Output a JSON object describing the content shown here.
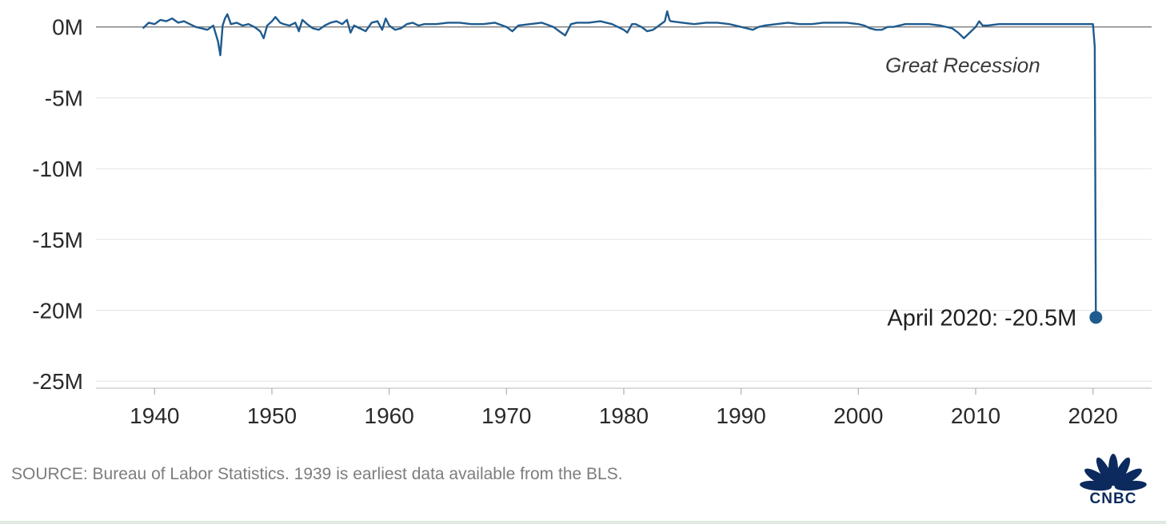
{
  "chart_data": {
    "type": "line",
    "title": "",
    "xlabel": "",
    "ylabel": "",
    "xlim": [
      1935,
      2025
    ],
    "ylim": [
      -25.5,
      1.0
    ],
    "x_ticks": [
      1940,
      1950,
      1960,
      1970,
      1980,
      1990,
      2000,
      2010,
      2020
    ],
    "x_tick_labels": [
      "1940",
      "1950",
      "1960",
      "1970",
      "1980",
      "1990",
      "2000",
      "2010",
      "2020"
    ],
    "y_ticks": [
      0,
      -5,
      -10,
      -15,
      -20,
      -25
    ],
    "y_tick_labels": [
      "0M",
      "-5M",
      "-10M",
      "-15M",
      "-20M",
      "-25M"
    ],
    "grid": "horizontal",
    "series": [
      {
        "color": "#1f5b8e",
        "points": [
          [
            1939.0,
            -0.1
          ],
          [
            1939.5,
            0.3
          ],
          [
            1940.0,
            0.2
          ],
          [
            1940.5,
            0.5
          ],
          [
            1941.0,
            0.4
          ],
          [
            1941.5,
            0.6
          ],
          [
            1942.0,
            0.3
          ],
          [
            1942.5,
            0.4
          ],
          [
            1943.0,
            0.2
          ],
          [
            1943.5,
            0.0
          ],
          [
            1944.0,
            -0.1
          ],
          [
            1944.5,
            -0.2
          ],
          [
            1945.0,
            0.1
          ],
          [
            1945.4,
            -1.0
          ],
          [
            1945.6,
            -2.0
          ],
          [
            1945.8,
            0.1
          ],
          [
            1946.0,
            0.6
          ],
          [
            1946.2,
            0.9
          ],
          [
            1946.5,
            0.2
          ],
          [
            1947.0,
            0.3
          ],
          [
            1947.5,
            0.1
          ],
          [
            1948.0,
            0.2
          ],
          [
            1948.5,
            0.0
          ],
          [
            1949.0,
            -0.3
          ],
          [
            1949.3,
            -0.8
          ],
          [
            1949.6,
            0.1
          ],
          [
            1950.0,
            0.4
          ],
          [
            1950.3,
            0.7
          ],
          [
            1950.7,
            0.3
          ],
          [
            1951.0,
            0.2
          ],
          [
            1951.5,
            0.1
          ],
          [
            1952.0,
            0.3
          ],
          [
            1952.3,
            -0.3
          ],
          [
            1952.6,
            0.5
          ],
          [
            1953.0,
            0.2
          ],
          [
            1953.5,
            -0.1
          ],
          [
            1954.0,
            -0.2
          ],
          [
            1954.5,
            0.1
          ],
          [
            1955.0,
            0.3
          ],
          [
            1955.5,
            0.4
          ],
          [
            1956.0,
            0.2
          ],
          [
            1956.4,
            0.5
          ],
          [
            1956.7,
            -0.4
          ],
          [
            1957.0,
            0.1
          ],
          [
            1957.5,
            -0.1
          ],
          [
            1958.0,
            -0.3
          ],
          [
            1958.5,
            0.3
          ],
          [
            1959.0,
            0.4
          ],
          [
            1959.4,
            -0.2
          ],
          [
            1959.7,
            0.6
          ],
          [
            1960.0,
            0.1
          ],
          [
            1960.5,
            -0.2
          ],
          [
            1961.0,
            -0.1
          ],
          [
            1961.5,
            0.2
          ],
          [
            1962.0,
            0.3
          ],
          [
            1962.5,
            0.1
          ],
          [
            1963.0,
            0.2
          ],
          [
            1964.0,
            0.2
          ],
          [
            1965.0,
            0.3
          ],
          [
            1966.0,
            0.3
          ],
          [
            1967.0,
            0.2
          ],
          [
            1968.0,
            0.2
          ],
          [
            1969.0,
            0.3
          ],
          [
            1970.0,
            0.0
          ],
          [
            1970.5,
            -0.3
          ],
          [
            1971.0,
            0.1
          ],
          [
            1972.0,
            0.2
          ],
          [
            1973.0,
            0.3
          ],
          [
            1974.0,
            0.0
          ],
          [
            1974.5,
            -0.3
          ],
          [
            1975.0,
            -0.6
          ],
          [
            1975.5,
            0.2
          ],
          [
            1976.0,
            0.3
          ],
          [
            1977.0,
            0.3
          ],
          [
            1978.0,
            0.4
          ],
          [
            1979.0,
            0.2
          ],
          [
            1980.0,
            -0.2
          ],
          [
            1980.3,
            -0.4
          ],
          [
            1980.7,
            0.2
          ],
          [
            1981.0,
            0.2
          ],
          [
            1981.5,
            0.0
          ],
          [
            1982.0,
            -0.3
          ],
          [
            1982.5,
            -0.2
          ],
          [
            1983.0,
            0.1
          ],
          [
            1983.5,
            0.4
          ],
          [
            1983.7,
            1.1
          ],
          [
            1983.9,
            0.5
          ],
          [
            1984.0,
            0.4
          ],
          [
            1985.0,
            0.3
          ],
          [
            1986.0,
            0.2
          ],
          [
            1987.0,
            0.3
          ],
          [
            1988.0,
            0.3
          ],
          [
            1989.0,
            0.2
          ],
          [
            1990.0,
            0.0
          ],
          [
            1990.5,
            -0.1
          ],
          [
            1991.0,
            -0.2
          ],
          [
            1991.5,
            0.0
          ],
          [
            1992.0,
            0.1
          ],
          [
            1993.0,
            0.2
          ],
          [
            1994.0,
            0.3
          ],
          [
            1995.0,
            0.2
          ],
          [
            1996.0,
            0.2
          ],
          [
            1997.0,
            0.3
          ],
          [
            1998.0,
            0.3
          ],
          [
            1999.0,
            0.3
          ],
          [
            2000.0,
            0.2
          ],
          [
            2000.5,
            0.1
          ],
          [
            2001.0,
            -0.1
          ],
          [
            2001.5,
            -0.2
          ],
          [
            2002.0,
            -0.2
          ],
          [
            2002.5,
            0.0
          ],
          [
            2003.0,
            0.0
          ],
          [
            2004.0,
            0.2
          ],
          [
            2005.0,
            0.2
          ],
          [
            2006.0,
            0.2
          ],
          [
            2007.0,
            0.1
          ],
          [
            2008.0,
            -0.1
          ],
          [
            2008.5,
            -0.4
          ],
          [
            2009.0,
            -0.8
          ],
          [
            2009.5,
            -0.4
          ],
          [
            2010.0,
            0.0
          ],
          [
            2010.3,
            0.4
          ],
          [
            2010.6,
            0.1
          ],
          [
            2011.0,
            0.1
          ],
          [
            2012.0,
            0.2
          ],
          [
            2013.0,
            0.2
          ],
          [
            2014.0,
            0.2
          ],
          [
            2015.0,
            0.2
          ],
          [
            2016.0,
            0.2
          ],
          [
            2017.0,
            0.2
          ],
          [
            2018.0,
            0.2
          ],
          [
            2019.0,
            0.2
          ],
          [
            2020.0,
            0.2
          ],
          [
            2020.15,
            -1.4
          ],
          [
            2020.25,
            -20.5
          ]
        ]
      }
    ],
    "annotations": [
      {
        "text": "Great Recession",
        "x": 2008.9,
        "y": -2.7,
        "style": "italic"
      }
    ],
    "callout": {
      "text": "April 2020: -20.5M",
      "x": 2020.25,
      "y": -20.5
    }
  },
  "footer": {
    "source": "SOURCE: Bureau of Labor Statistics. 1939 is earliest data available from the BLS."
  },
  "logo": {
    "name": "peacock-logo",
    "text": "CNBC"
  }
}
